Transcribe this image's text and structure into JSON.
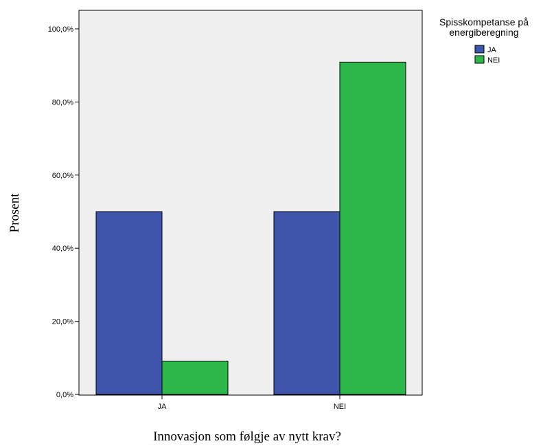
{
  "chart_data": {
    "type": "bar",
    "categories": [
      "JA",
      "NEI"
    ],
    "series": [
      {
        "name": "JA",
        "values": [
          50.0,
          50.0
        ],
        "color": "#3e55ab"
      },
      {
        "name": "NEI",
        "values": [
          9.1,
          90.9
        ],
        "color": "#2eb84b"
      }
    ],
    "xlabel": "Innovasjon som følgje av nytt krav?",
    "ylabel": "Prosent",
    "ylim": [
      0,
      105
    ],
    "yticks": [
      0,
      20,
      40,
      60,
      80,
      100
    ],
    "ytick_labels": [
      "0,0%",
      "20,0%",
      "40,0%",
      "60,0%",
      "80,0%",
      "100,0%"
    ],
    "legend": {
      "title_lines": [
        "Spisskompetanse på",
        "energiberegning"
      ],
      "placement": "top-right, outside plot"
    },
    "plot_background": "#f0f0f0",
    "grid": false
  }
}
